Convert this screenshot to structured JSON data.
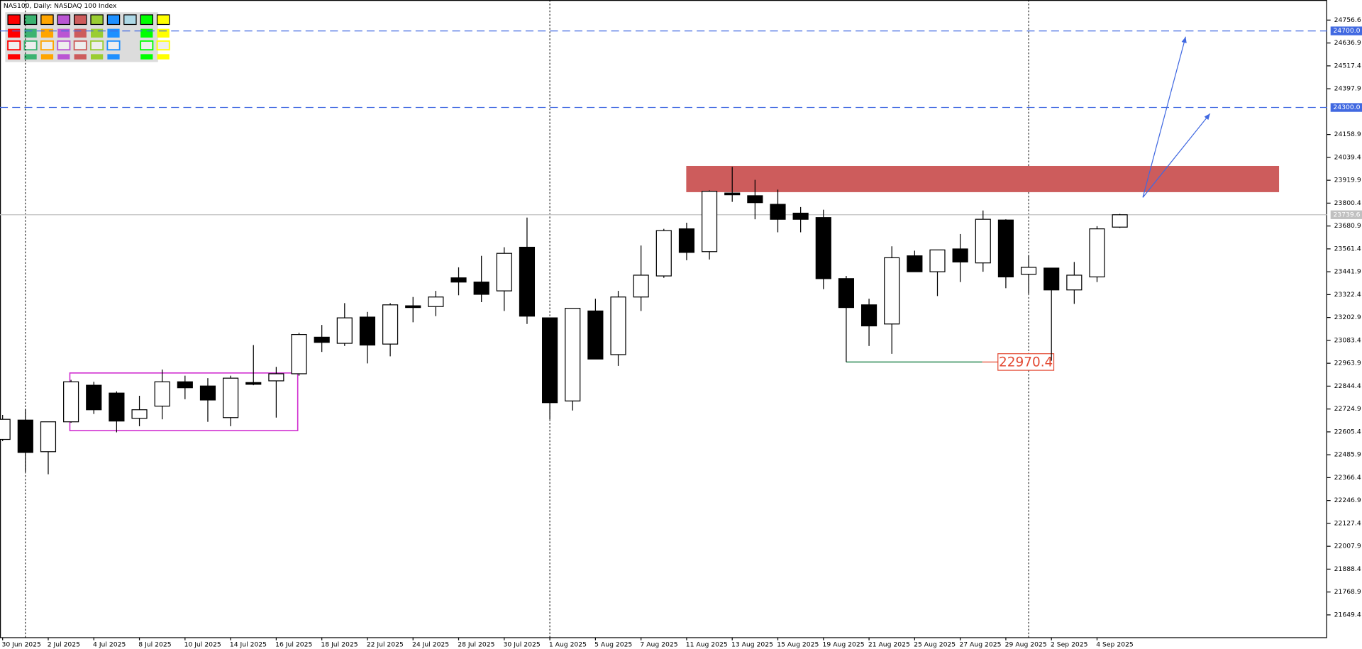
{
  "chart_data": {
    "type": "candlestick",
    "title": "NAS100, Daily:  NASDAQ 100 Index",
    "categories": [
      "30 Jun 2025",
      null,
      "2 Jul 2025",
      null,
      "4 Jul 2025",
      null,
      "8 Jul 2025",
      null,
      "10 Jul 2025",
      null,
      "14 Jul 2025",
      null,
      "16 Jul 2025",
      null,
      "18 Jul 2025",
      null,
      "22 Jul 2025",
      null,
      "24 Jul 2025",
      null,
      "28 Jul 2025",
      null,
      "30 Jul 2025",
      null,
      "1 Aug 2025",
      null,
      "5 Aug 2025",
      null,
      "7 Aug 2025",
      null,
      "11 Aug 2025",
      null,
      "13 Aug 2025",
      null,
      "15 Aug 2025",
      null,
      "19 Aug 2025",
      null,
      "21 Aug 2025",
      null,
      "25 Aug 2025",
      null,
      "27 Aug 2025",
      null,
      "29 Aug 2025",
      null,
      "2 Sep 2025",
      null,
      "4 Sep 2025",
      null
    ],
    "open": [
      22566,
      22667,
      22502,
      22658,
      22849,
      22808,
      22676,
      22740,
      22867,
      22845,
      22680,
      22863,
      22872,
      22909,
      23100,
      23068,
      23205,
      23064,
      23264,
      23260,
      23410,
      23388,
      23342,
      23570,
      23201,
      22767,
      23237,
      23009,
      23310,
      23420,
      23666,
      23547,
      23853,
      23839,
      23794,
      23748,
      23725,
      23406,
      23269,
      23169,
      23525,
      23442,
      23561,
      23488,
      23712,
      23429,
      23461,
      23347,
      23415,
      23675
    ],
    "high": [
      22694,
      22726,
      22658,
      22877,
      22867,
      22817,
      22794,
      22931,
      22899,
      22886,
      22899,
      23059,
      22945,
      23123,
      23164,
      23278,
      23232,
      23278,
      23310,
      23342,
      23465,
      23525,
      23570,
      23725,
      23201,
      23251,
      23301,
      23342,
      23579,
      23666,
      23698,
      23867,
      23990,
      23922,
      23871,
      23780,
      23766,
      23420,
      23301,
      23575,
      23552,
      23556,
      23639,
      23762,
      23716,
      23529,
      23461,
      23493,
      23680,
      23744
    ],
    "low": [
      22557,
      22397,
      22384,
      22653,
      22699,
      22603,
      22635,
      22671,
      22776,
      22658,
      22635,
      22849,
      22680,
      22899,
      23023,
      23054,
      22963,
      23000,
      23178,
      23210,
      23319,
      23283,
      23237,
      23169,
      22671,
      22717,
      22986,
      22950,
      23237,
      23410,
      23502,
      23506,
      23807,
      23716,
      23648,
      23648,
      23351,
      22970.4,
      23054,
      23013,
      23442,
      23315,
      23388,
      23442,
      23356,
      23328,
      22977,
      23274,
      23388,
      23671
    ],
    "close": [
      22671,
      22498,
      22658,
      22867,
      22721,
      22662,
      22721,
      22867,
      22836,
      22772,
      22886,
      22854,
      22909,
      23114,
      23073,
      23201,
      23059,
      23269,
      23255,
      23310,
      23388,
      23324,
      23538,
      23210,
      22758,
      23251,
      22986,
      23310,
      23424,
      23657,
      23543,
      23862,
      23844,
      23803,
      23716,
      23716,
      23406,
      23255,
      23159,
      23515,
      23442,
      23556,
      23493,
      23716,
      23415,
      23465,
      23347,
      23424,
      23666,
      23739.6
    ],
    "up_color": "#ffffff",
    "down_color": "#000000",
    "ylim": [
      21530.5,
      24861.5
    ],
    "yticks": [
      24756.6,
      24636.9,
      24517.4,
      24397.9,
      24158.9,
      24039.4,
      23919.9,
      23800.4,
      23680.9,
      23561.4,
      23441.9,
      23322.4,
      23202.9,
      23083.4,
      22963.9,
      22844.4,
      22724.9,
      22605.4,
      22485.9,
      22366.4,
      22246.9,
      22127.4,
      22007.9,
      21888.4,
      21768.9,
      21649.4
    ],
    "levels": [
      {
        "value": 24700,
        "label": "24700.0"
      },
      {
        "value": 24300,
        "label": "24300.0"
      }
    ],
    "level_color": "#4169e1",
    "current_price": 23739.6,
    "low_annotation": 22970.4
  }
}
